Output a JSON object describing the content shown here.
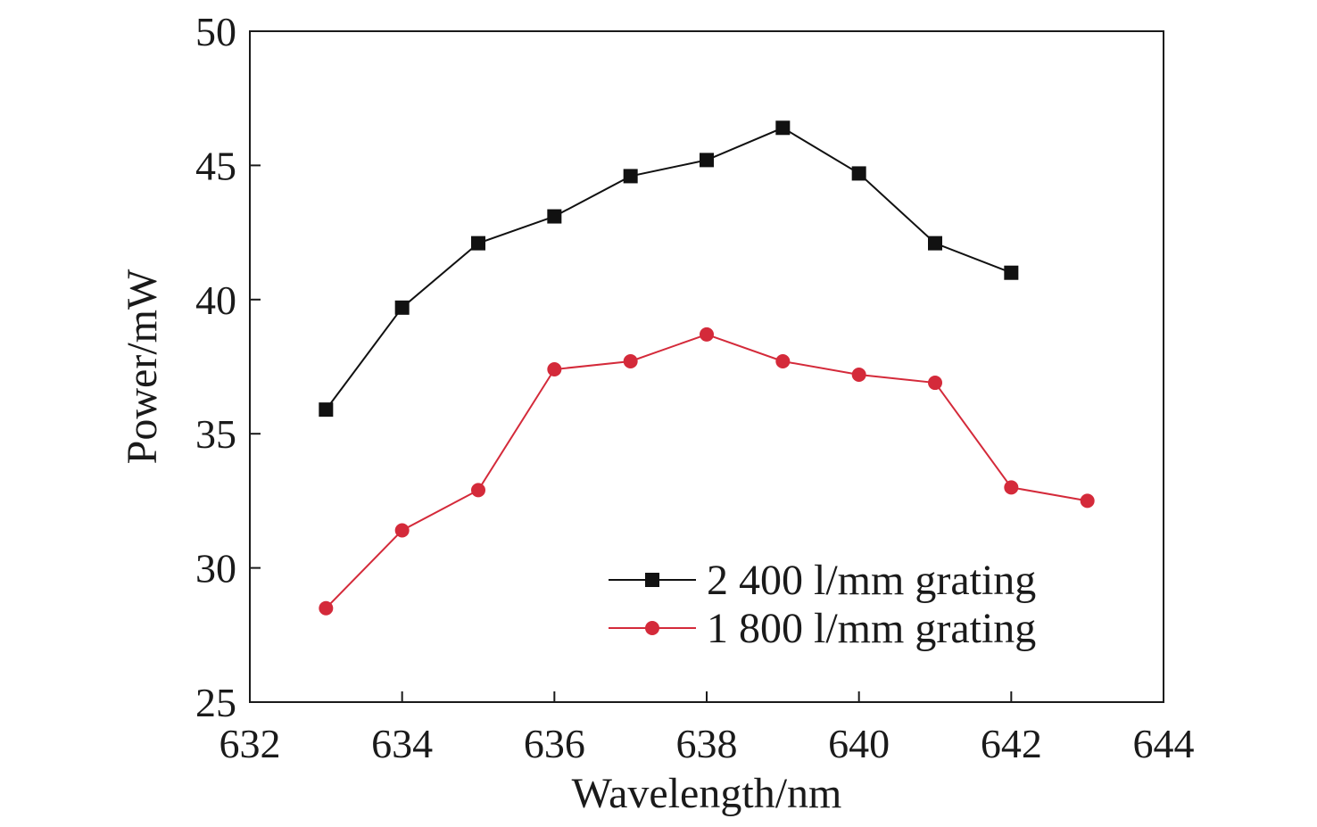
{
  "chart_data": {
    "type": "line",
    "xlabel": "Wavelength/nm",
    "ylabel": "Power/mW",
    "xlim": [
      632,
      644
    ],
    "ylim": [
      25,
      50
    ],
    "xticks": [
      632,
      634,
      636,
      638,
      640,
      642,
      644
    ],
    "yticks": [
      25,
      30,
      35,
      40,
      45,
      50
    ],
    "grid": false,
    "legend_position": "bottom-right",
    "series": [
      {
        "name": "2 400 l/mm grating",
        "marker": "square",
        "color": "#111111",
        "x": [
          633,
          634,
          635,
          636,
          637,
          638,
          639,
          640,
          641,
          642
        ],
        "y": [
          35.9,
          39.7,
          42.1,
          43.1,
          44.6,
          45.2,
          46.4,
          44.7,
          42.1,
          41.0
        ]
      },
      {
        "name": "1 800 l/mm grating",
        "marker": "circle",
        "color": "#d42a3a",
        "x": [
          633,
          634,
          635,
          636,
          637,
          638,
          639,
          640,
          641,
          642,
          643
        ],
        "y": [
          28.5,
          31.4,
          32.9,
          37.4,
          37.7,
          38.7,
          37.7,
          37.2,
          36.9,
          33.0,
          32.5
        ]
      }
    ]
  }
}
